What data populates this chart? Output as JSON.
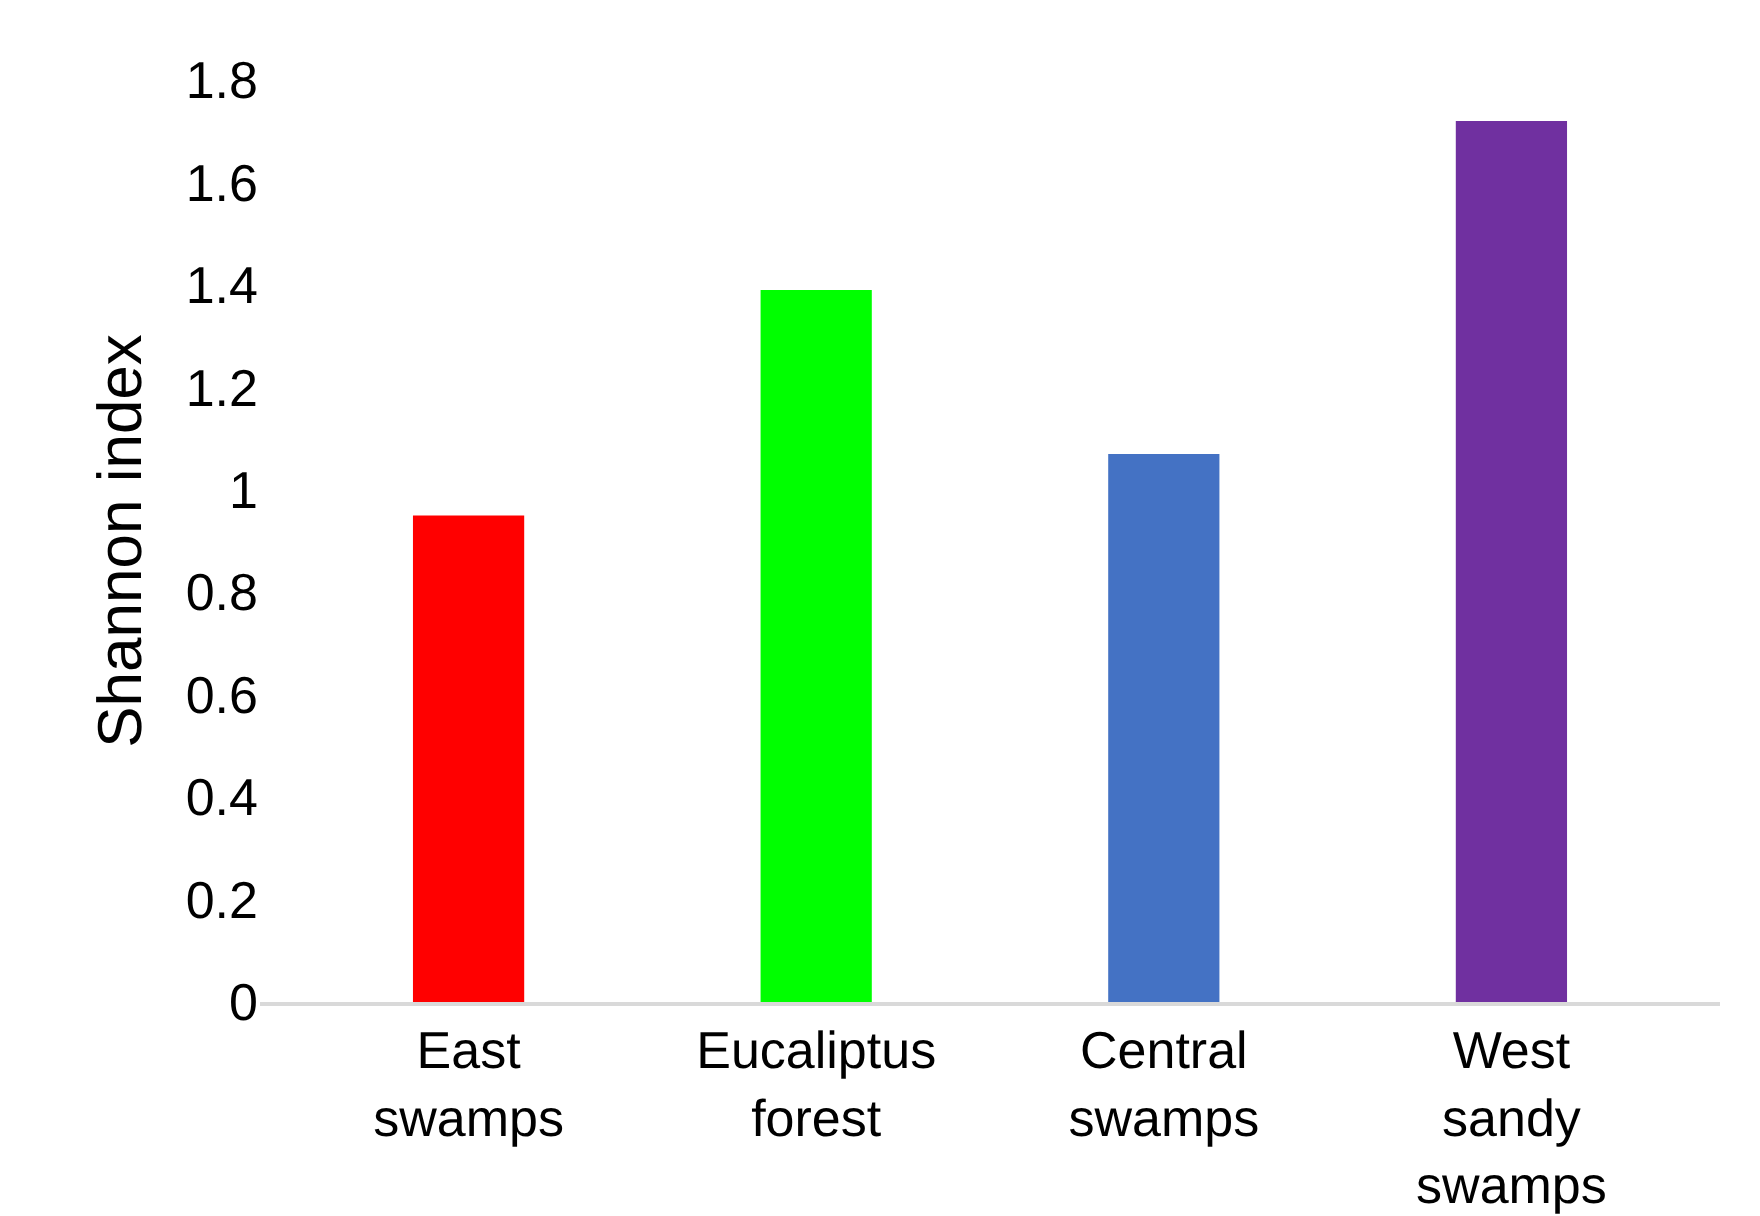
{
  "chart_data": {
    "type": "bar",
    "ylabel": "Shannon index",
    "categories": [
      "East swamps",
      "Eucaliptus forest",
      "Central swamps",
      "West sandy swamps"
    ],
    "values": [
      0.95,
      1.39,
      1.07,
      1.72
    ],
    "colors": [
      "#ff0000",
      "#00ff00",
      "#4472c4",
      "#7030a0"
    ],
    "ylim": [
      0,
      1.8
    ],
    "yticks": [
      0,
      0.2,
      0.4,
      0.6,
      0.8,
      1,
      1.2,
      1.4,
      1.6,
      1.8
    ]
  }
}
